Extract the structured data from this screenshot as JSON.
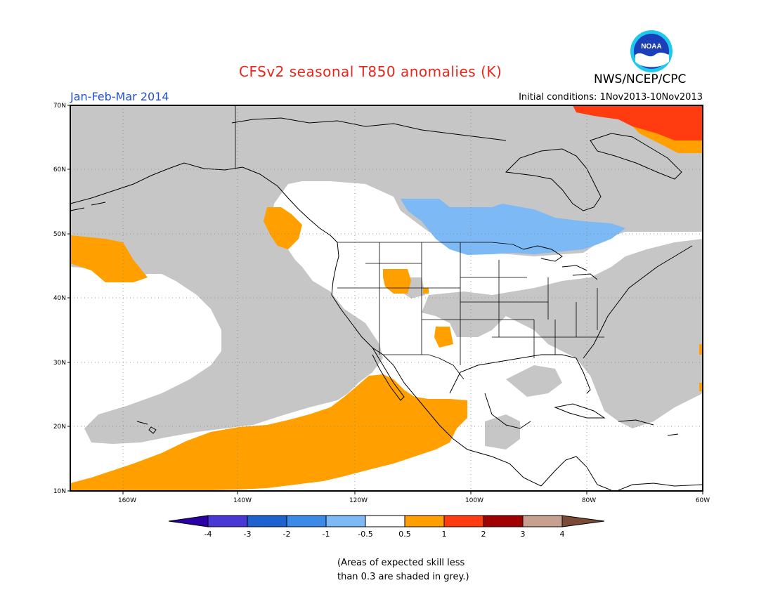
{
  "header": {
    "title": "CFSv2 seasonal T850 anomalies (K)",
    "agency": "NWS/NCEP/CPC",
    "logo_text": "NOAA",
    "season": "Jan-Feb-Mar 2014",
    "initial_conditions": "Initial conditions: 1Nov2013-10Nov2013"
  },
  "axes": {
    "lat_labels": [
      "70N",
      "60N",
      "50N",
      "40N",
      "30N",
      "20N",
      "10N"
    ],
    "lon_labels": [
      "160W",
      "140W",
      "120W",
      "100W",
      "80W",
      "60W"
    ]
  },
  "colorbar": {
    "tick_labels": [
      "-4",
      "-3",
      "-2",
      "-1",
      "-0.5",
      "0.5",
      "1",
      "2",
      "3",
      "4"
    ],
    "colors": [
      "#2a00a6",
      "#4838d6",
      "#1e62cf",
      "#3b8ae8",
      "#7cb9f5",
      "#ffffff",
      "#ffa000",
      "#ff3b0f",
      "#a00000",
      "#c8a090",
      "#7a4a36"
    ]
  },
  "colors": {
    "grey_skill": "#c6c6c6",
    "warm_05_1": "#ffa000",
    "warm_1_2": "#ff3b0f",
    "cool_05_1": "#7cb9f5",
    "title": "#e8261c",
    "season": "#1f4fd6"
  },
  "note": {
    "line1": "(Areas of expected skill less",
    "line2": "than 0.3 are shaded in grey.)"
  }
}
